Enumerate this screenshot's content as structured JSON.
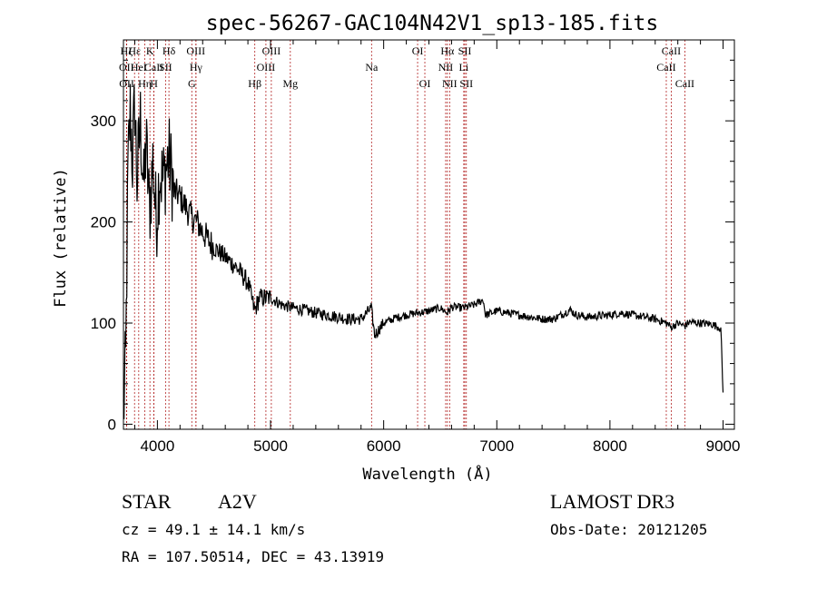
{
  "chart_data": {
    "type": "line",
    "title": "spec-56267-GAC104N42V1_sp13-185.fits",
    "xlabel": "Wavelength (Å)",
    "ylabel": "Flux (relative)",
    "xlim": [
      3700,
      9100
    ],
    "ylim": [
      -5,
      380
    ],
    "x_ticks": [
      4000,
      5000,
      6000,
      7000,
      8000,
      9000
    ],
    "y_ticks": [
      0,
      100,
      200,
      300
    ],
    "grid": false,
    "series": [
      {
        "name": "flux",
        "anchors": [
          [
            3700,
            10
          ],
          [
            3720,
            60
          ],
          [
            3740,
            250
          ],
          [
            3760,
            310
          ],
          [
            3780,
            260
          ],
          [
            3800,
            320
          ],
          [
            3820,
            240
          ],
          [
            3850,
            300
          ],
          [
            3880,
            230
          ],
          [
            3900,
            280
          ],
          [
            3930,
            210
          ],
          [
            3960,
            260
          ],
          [
            3990,
            200
          ],
          [
            4020,
            250
          ],
          [
            4050,
            240
          ],
          [
            4100,
            265
          ],
          [
            4150,
            230
          ],
          [
            4200,
            225
          ],
          [
            4250,
            215
          ],
          [
            4300,
            205
          ],
          [
            4350,
            200
          ],
          [
            4400,
            190
          ],
          [
            4450,
            182
          ],
          [
            4500,
            175
          ],
          [
            4600,
            165
          ],
          [
            4700,
            155
          ],
          [
            4800,
            140
          ],
          [
            4860,
            112
          ],
          [
            4900,
            125
          ],
          [
            5000,
            125
          ],
          [
            5100,
            118
          ],
          [
            5200,
            115
          ],
          [
            5300,
            113
          ],
          [
            5400,
            110
          ],
          [
            5500,
            108
          ],
          [
            5600,
            106
          ],
          [
            5700,
            104
          ],
          [
            5800,
            104
          ],
          [
            5890,
            115
          ],
          [
            5920,
            88
          ],
          [
            6000,
            100
          ],
          [
            6100,
            105
          ],
          [
            6200,
            108
          ],
          [
            6300,
            110
          ],
          [
            6400,
            112
          ],
          [
            6500,
            115
          ],
          [
            6563,
            110
          ],
          [
            6600,
            116
          ],
          [
            6700,
            115
          ],
          [
            6800,
            118
          ],
          [
            6880,
            123
          ],
          [
            6900,
            108
          ],
          [
            7000,
            112
          ],
          [
            7100,
            110
          ],
          [
            7200,
            108
          ],
          [
            7300,
            106
          ],
          [
            7400,
            104
          ],
          [
            7500,
            104
          ],
          [
            7600,
            110
          ],
          [
            7650,
            113
          ],
          [
            7700,
            108
          ],
          [
            7800,
            106
          ],
          [
            7900,
            107
          ],
          [
            8000,
            108
          ],
          [
            8100,
            110
          ],
          [
            8200,
            108
          ],
          [
            8300,
            106
          ],
          [
            8400,
            104
          ],
          [
            8500,
            100
          ],
          [
            8542,
            96
          ],
          [
            8600,
            100
          ],
          [
            8662,
            97
          ],
          [
            8700,
            101
          ],
          [
            8800,
            100
          ],
          [
            8900,
            99
          ],
          [
            8980,
            95
          ],
          [
            9000,
            30
          ]
        ]
      }
    ],
    "spectral_lines": [
      {
        "name": "Hζ",
        "wl": 3727,
        "row": 1
      },
      {
        "name": "OII",
        "wl": 3727,
        "row": 2
      },
      {
        "name": "OII",
        "wl": 3729,
        "row": 3
      },
      {
        "name": "Hε",
        "wl": 3798,
        "row": 1
      },
      {
        "name": "HeI",
        "wl": 3835,
        "row": 2
      },
      {
        "name": "Hη",
        "wl": 3889,
        "row": 3
      },
      {
        "name": "K",
        "wl": 3934,
        "row": 1
      },
      {
        "name": "CaII",
        "wl": 3969,
        "row": 2
      },
      {
        "name": "H",
        "wl": 3969,
        "row": 3
      },
      {
        "name": "Hδ",
        "wl": 4102,
        "row": 1
      },
      {
        "name": "SII",
        "wl": 4072,
        "row": 2
      },
      {
        "name": "OIII",
        "wl": 4340,
        "row": 1
      },
      {
        "name": "Hγ",
        "wl": 4341,
        "row": 2
      },
      {
        "name": "G",
        "wl": 4304,
        "row": 3
      },
      {
        "name": "Hβ",
        "wl": 4861,
        "row": 3
      },
      {
        "name": "OIII",
        "wl": 4959,
        "row": 2
      },
      {
        "name": "OIII",
        "wl": 5007,
        "row": 1
      },
      {
        "name": "Mg",
        "wl": 5175,
        "row": 3
      },
      {
        "name": "Na",
        "wl": 5893,
        "row": 2
      },
      {
        "name": "OI",
        "wl": 6300,
        "row": 1
      },
      {
        "name": "OI",
        "wl": 6364,
        "row": 3
      },
      {
        "name": "Hα",
        "wl": 6563,
        "row": 1
      },
      {
        "name": "NII",
        "wl": 6548,
        "row": 2
      },
      {
        "name": "NII",
        "wl": 6583,
        "row": 3
      },
      {
        "name": "SII",
        "wl": 6717,
        "row": 1
      },
      {
        "name": "Li",
        "wl": 6708,
        "row": 2
      },
      {
        "name": "SII",
        "wl": 6731,
        "row": 3
      },
      {
        "name": "CaII",
        "wl": 8498,
        "row": 2
      },
      {
        "name": "CaII",
        "wl": 8542,
        "row": 1
      },
      {
        "name": "CaII",
        "wl": 8662,
        "row": 3
      }
    ]
  },
  "info": {
    "class_label": "STAR",
    "subclass": "A2V",
    "redshift_text": "cz = 49.1 ± 14.1 km/s",
    "coords_text": "RA = 107.50514, DEC =  43.13919",
    "survey": "LAMOST DR3",
    "obs_date_text": "Obs-Date: 20121205"
  },
  "colors": {
    "line_marker": "#b22222",
    "trace": "#000000"
  }
}
